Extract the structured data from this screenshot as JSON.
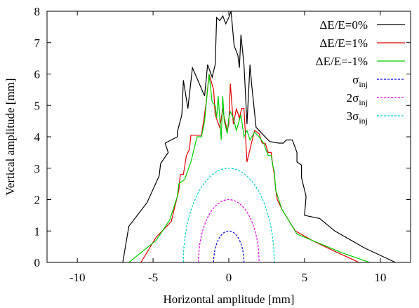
{
  "chart_data": {
    "type": "line",
    "xlabel": "Horizontal amplitude [mm]",
    "ylabel": "Vertical amplitude [mm]",
    "xlim": [
      -12,
      12
    ],
    "ylim": [
      0,
      8
    ],
    "xticks": [
      -10,
      -5,
      0,
      5,
      10
    ],
    "yticks": [
      0,
      1,
      2,
      3,
      4,
      5,
      6,
      7,
      8
    ],
    "grid": false,
    "legend_position": "top-right",
    "series": [
      {
        "name": "ΔE/E=0%",
        "name_base": "ΔE/E=0%",
        "name_sub": "",
        "color": "#000000",
        "dash": "solid",
        "points": [
          [
            -7.0,
            0.0
          ],
          [
            -6.6,
            1.15
          ],
          [
            -5.4,
            1.9
          ],
          [
            -4.6,
            2.75
          ],
          [
            -4.5,
            3.15
          ],
          [
            -4.0,
            3.5
          ],
          [
            -4.2,
            3.8
          ],
          [
            -3.4,
            4.0
          ],
          [
            -3.4,
            4.15
          ],
          [
            -3.1,
            4.7
          ],
          [
            -3.0,
            5.8
          ],
          [
            -2.7,
            4.9
          ],
          [
            -2.4,
            6.2
          ],
          [
            -1.6,
            5.3
          ],
          [
            -1.4,
            6.3
          ],
          [
            -1.1,
            5.9
          ],
          [
            -0.9,
            6.3
          ],
          [
            -0.8,
            7.8
          ],
          [
            -0.6,
            7.7
          ],
          [
            -0.4,
            7.85
          ],
          [
            -0.2,
            7.6
          ],
          [
            0.0,
            7.8
          ],
          [
            0.15,
            8.0
          ],
          [
            0.35,
            6.9
          ],
          [
            0.6,
            6.6
          ],
          [
            0.7,
            6.2
          ],
          [
            0.8,
            7.25
          ],
          [
            1.0,
            6.3
          ],
          [
            1.1,
            5.4
          ],
          [
            1.2,
            4.4
          ],
          [
            1.4,
            6.3
          ],
          [
            1.5,
            5.7
          ],
          [
            1.8,
            4.3
          ],
          [
            2.3,
            4.05
          ],
          [
            2.7,
            3.85
          ],
          [
            3.3,
            3.8
          ],
          [
            3.6,
            3.8
          ],
          [
            3.8,
            3.9
          ],
          [
            4.2,
            3.9
          ],
          [
            4.5,
            3.5
          ],
          [
            4.5,
            3.2
          ],
          [
            4.8,
            3.1
          ],
          [
            4.8,
            2.7
          ],
          [
            5.1,
            2.1
          ],
          [
            5.0,
            1.5
          ],
          [
            6.0,
            1.4
          ],
          [
            7.0,
            1.0
          ],
          [
            9.0,
            0.45
          ],
          [
            11.0,
            0.0
          ]
        ]
      },
      {
        "name": "ΔE/E=1%",
        "name_base": "ΔE/E=1%",
        "name_sub": "",
        "color": "#dd0000",
        "dash": "solid",
        "points": [
          [
            -5.8,
            0.0
          ],
          [
            -4.8,
            0.8
          ],
          [
            -3.8,
            1.3
          ],
          [
            -3.3,
            2.3
          ],
          [
            -3.2,
            2.8
          ],
          [
            -3.0,
            2.8
          ],
          [
            -2.8,
            3.4
          ],
          [
            -2.6,
            3.6
          ],
          [
            -2.5,
            4.05
          ],
          [
            -1.8,
            4.05
          ],
          [
            -1.5,
            5.05
          ],
          [
            -1.3,
            6.0
          ],
          [
            -1.0,
            5.5
          ],
          [
            -0.9,
            4.7
          ],
          [
            -0.6,
            4.3
          ],
          [
            -0.4,
            4.9
          ],
          [
            -0.3,
            4.6
          ],
          [
            -0.1,
            4.2
          ],
          [
            0.0,
            4.4
          ],
          [
            0.1,
            5.7
          ],
          [
            0.3,
            4.4
          ],
          [
            0.5,
            4.9
          ],
          [
            0.7,
            4.6
          ],
          [
            0.85,
            4.9
          ],
          [
            1.0,
            4.9
          ],
          [
            1.2,
            3.2
          ],
          [
            1.4,
            3.6
          ],
          [
            1.6,
            4.0
          ],
          [
            1.7,
            4.2
          ],
          [
            2.0,
            4.1
          ],
          [
            2.2,
            3.8
          ],
          [
            2.4,
            3.8
          ],
          [
            2.6,
            3.5
          ],
          [
            2.8,
            3.5
          ],
          [
            2.9,
            3.1
          ],
          [
            3.0,
            2.8
          ],
          [
            3.1,
            2.3
          ],
          [
            3.2,
            2.0
          ],
          [
            3.5,
            1.7
          ],
          [
            4.0,
            1.3
          ],
          [
            4.4,
            1.0
          ],
          [
            5.5,
            0.7
          ],
          [
            7.0,
            0.35
          ],
          [
            8.6,
            0.0
          ]
        ]
      },
      {
        "name": "ΔE/E=-1%",
        "name_base": "ΔE/E=-1%",
        "name_sub": "",
        "color": "#00cc00",
        "dash": "solid",
        "points": [
          [
            -6.6,
            0.0
          ],
          [
            -4.8,
            0.7
          ],
          [
            -3.9,
            1.35
          ],
          [
            -3.4,
            2.1
          ],
          [
            -3.3,
            2.5
          ],
          [
            -2.9,
            2.65
          ],
          [
            -2.8,
            2.8
          ],
          [
            -2.5,
            3.2
          ],
          [
            -2.3,
            3.6
          ],
          [
            -2.1,
            4.0
          ],
          [
            -1.8,
            4.0
          ],
          [
            -1.6,
            4.5
          ],
          [
            -1.3,
            6.0
          ],
          [
            -1.1,
            5.1
          ],
          [
            -0.9,
            5.0
          ],
          [
            -0.8,
            4.6
          ],
          [
            -0.7,
            5.3
          ],
          [
            -0.5,
            3.9
          ],
          [
            -0.4,
            5.3
          ],
          [
            -0.3,
            4.5
          ],
          [
            -0.1,
            4.1
          ],
          [
            0.0,
            4.6
          ],
          [
            0.1,
            4.8
          ],
          [
            0.3,
            4.6
          ],
          [
            0.5,
            4.2
          ],
          [
            0.8,
            4.7
          ],
          [
            1.0,
            4.0
          ],
          [
            1.2,
            4.2
          ],
          [
            1.4,
            3.9
          ],
          [
            1.7,
            4.15
          ],
          [
            2.0,
            4.0
          ],
          [
            2.3,
            3.8
          ],
          [
            2.6,
            3.4
          ],
          [
            2.8,
            3.4
          ],
          [
            2.9,
            3.1
          ],
          [
            3.0,
            2.9
          ],
          [
            3.1,
            2.3
          ],
          [
            3.3,
            2.0
          ],
          [
            3.5,
            1.7
          ],
          [
            4.0,
            1.3
          ],
          [
            4.5,
            0.9
          ],
          [
            6.0,
            0.6
          ],
          [
            7.5,
            0.3
          ],
          [
            9.3,
            0.0
          ]
        ]
      },
      {
        "name": "σinj",
        "name_base": "σ",
        "name_sub": "inj",
        "color": "#0000cc",
        "dash": "dashed",
        "ellipse": {
          "a": 1.0,
          "b": 1.0
        }
      },
      {
        "name": "2σinj",
        "name_base": "2σ",
        "name_sub": "inj",
        "color": "#dd00dd",
        "dash": "dashed",
        "ellipse": {
          "a": 2.0,
          "b": 2.0
        }
      },
      {
        "name": "3σinj",
        "name_base": "3σ",
        "name_sub": "inj",
        "color": "#00cccc",
        "dash": "dashed",
        "ellipse": {
          "a": 3.0,
          "b": 3.0
        }
      }
    ]
  }
}
